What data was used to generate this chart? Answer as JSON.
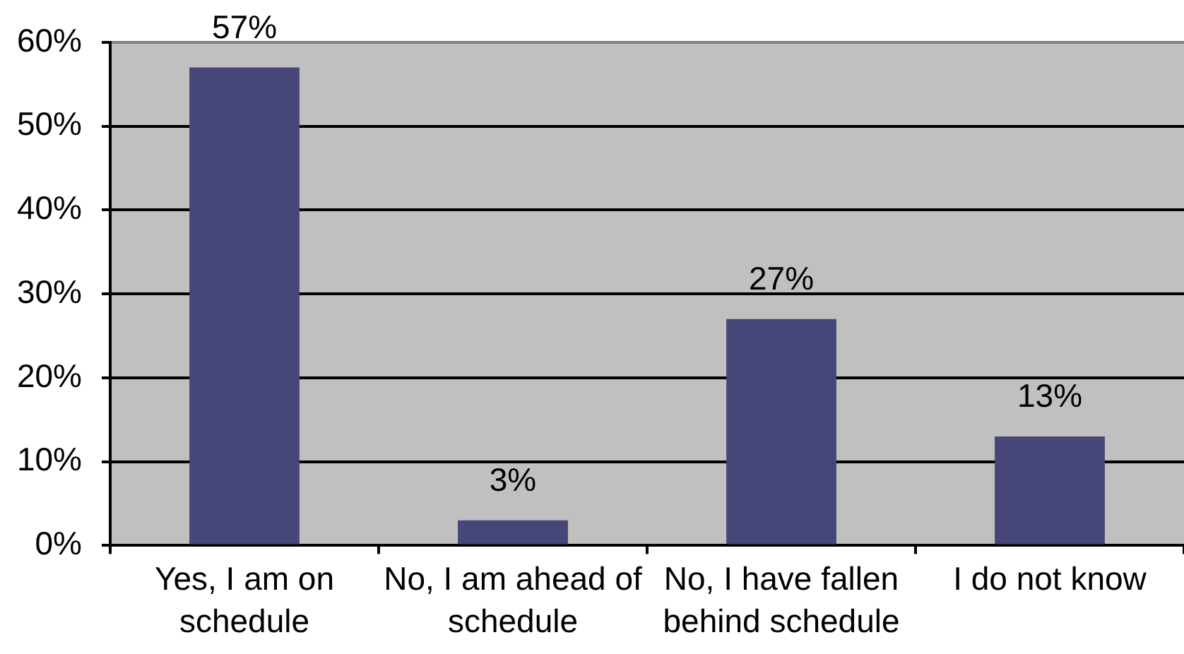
{
  "chart_data": {
    "type": "bar",
    "categories": [
      "Yes, I am on schedule",
      "No, I am ahead of schedule",
      "No, I have fallen behind schedule",
      "I do not know"
    ],
    "values": [
      57,
      3,
      27,
      13
    ],
    "color": "#464678",
    "value_labels": [
      "57%",
      "3%",
      "27%",
      "13%"
    ],
    "ylim": [
      0,
      60
    ],
    "yticks": [
      {
        "value": 0,
        "label": "0%"
      },
      {
        "value": 10,
        "label": "10%"
      },
      {
        "value": 20,
        "label": "20%"
      },
      {
        "value": 30,
        "label": "30%"
      },
      {
        "value": 40,
        "label": "40%"
      },
      {
        "value": 50,
        "label": "50%"
      },
      {
        "value": 60,
        "label": "60%"
      }
    ],
    "grid": "y",
    "legend": false
  }
}
